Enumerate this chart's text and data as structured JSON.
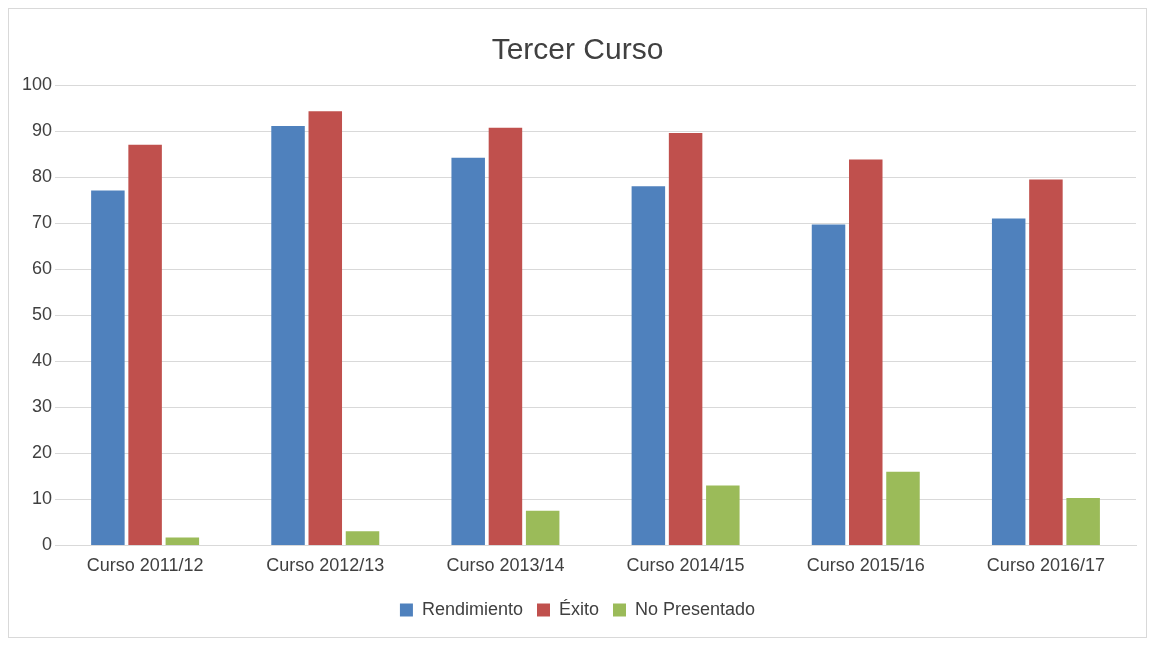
{
  "chart_data": {
    "type": "bar",
    "title": "Tercer Curso",
    "categories": [
      "Curso 2011/12",
      "Curso 2012/13",
      "Curso 2013/14",
      "Curso 2014/15",
      "Curso 2015/16",
      "Curso 2016/17"
    ],
    "series": [
      {
        "name": "Rendimiento",
        "color": "#4f81bd",
        "values": [
          77.1,
          91.1,
          84.2,
          78.0,
          69.7,
          71.0
        ]
      },
      {
        "name": "Éxito",
        "color": "#c0504d",
        "values": [
          87.0,
          94.3,
          90.7,
          89.6,
          83.8,
          79.5
        ]
      },
      {
        "name": "No Presentado",
        "color": "#9bbb59",
        "values": [
          1.7,
          3.1,
          7.5,
          13.0,
          16.0,
          10.3
        ]
      }
    ],
    "ylim": [
      0,
      100
    ],
    "yticks": [
      0,
      10,
      20,
      30,
      40,
      50,
      60,
      70,
      80,
      90,
      100
    ],
    "grid": "y",
    "legend": "bottom"
  }
}
